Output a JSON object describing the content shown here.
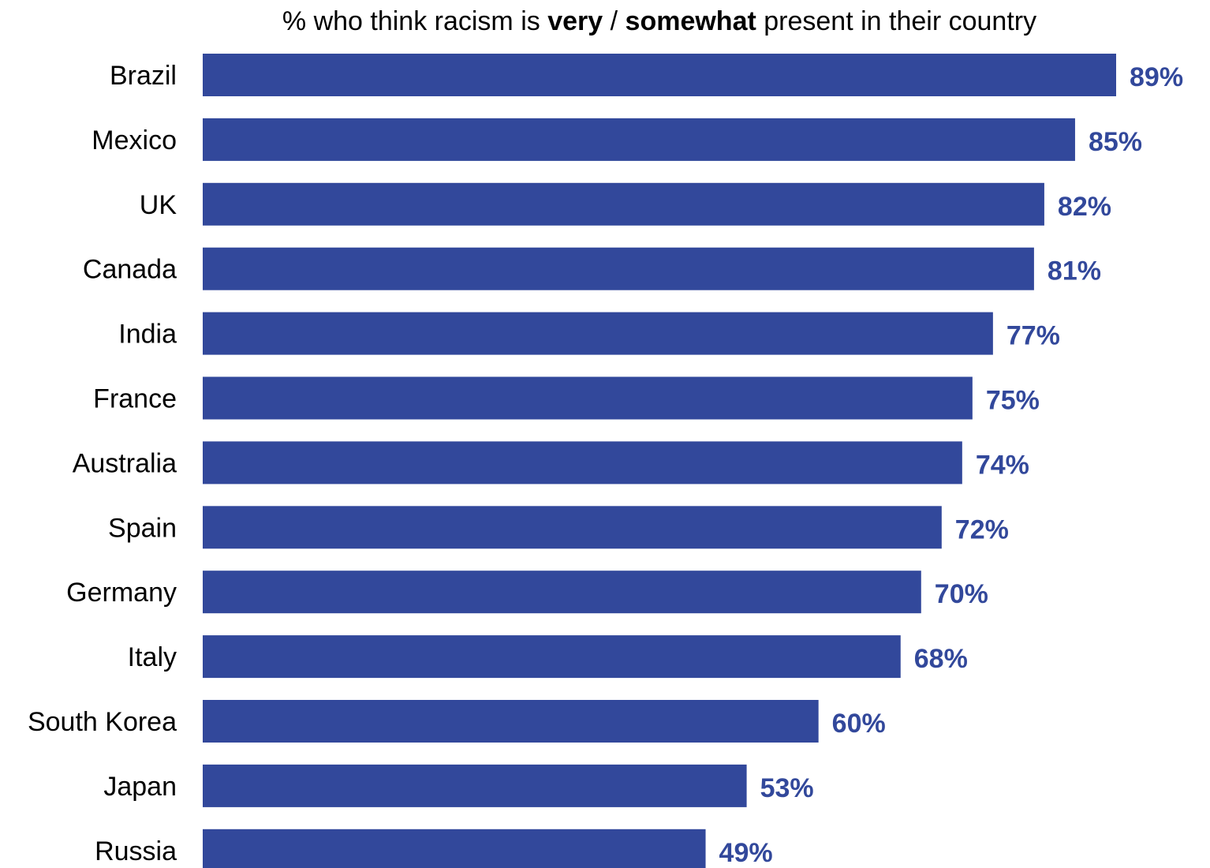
{
  "chart_data": {
    "type": "bar",
    "orientation": "horizontal",
    "title": {
      "segments": [
        {
          "text": "% who think racism is ",
          "bold": false
        },
        {
          "text": "very",
          "bold": true
        },
        {
          "text": " / ",
          "bold": false
        },
        {
          "text": "somewhat",
          "bold": true
        },
        {
          "text": " present in their country",
          "bold": false
        }
      ]
    },
    "categories": [
      "Brazil",
      "Mexico",
      "UK",
      "Canada",
      "India",
      "France",
      "Australia",
      "Spain",
      "Germany",
      "Italy",
      "South Korea",
      "Japan",
      "Russia"
    ],
    "values": [
      89,
      85,
      82,
      81,
      77,
      75,
      74,
      72,
      70,
      68,
      60,
      53,
      49
    ],
    "value_labels": [
      "89%",
      "85%",
      "82%",
      "81%",
      "77%",
      "75%",
      "74%",
      "72%",
      "70%",
      "68%",
      "60%",
      "53%",
      "49%"
    ],
    "xlim": [
      0,
      89
    ],
    "grid": false,
    "legend": "none",
    "colors": {
      "bar": "#32489B",
      "value_label": "#32489B",
      "text": "#000000"
    }
  }
}
